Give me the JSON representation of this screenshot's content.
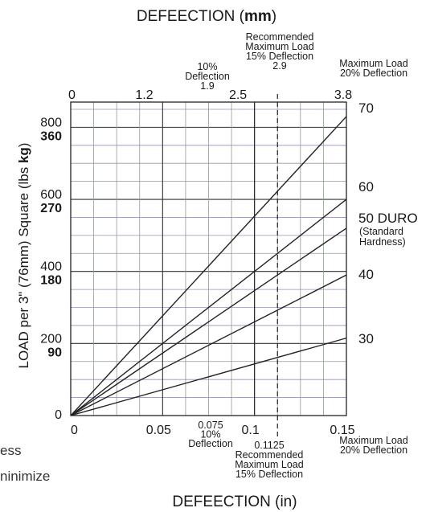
{
  "chart_data": {
    "type": "line",
    "title_top": {
      "main": "DEFEECTION (",
      "bold": "mm",
      "end": ")"
    },
    "xlabel": "DEFEECTION (in)",
    "ylabel": {
      "main": "LOAD per 3\" (76mm) Square (lbs ",
      "bold": "kg",
      "end": ")"
    },
    "xlim": [
      0,
      0.15
    ],
    "ylim": [
      0,
      800
    ],
    "x_ticks_bottom": [
      {
        "value": 0,
        "label": "0"
      },
      {
        "value": 0.05,
        "label": "0.05"
      },
      {
        "value": 0.1,
        "label": "0.1"
      },
      {
        "value": 0.15,
        "label": "0.15"
      }
    ],
    "x_ticks_top": [
      {
        "value": 0,
        "label": "0"
      },
      {
        "value": 0.047,
        "label": "1.2"
      },
      {
        "value": 0.098,
        "label": "2.5"
      },
      {
        "value": 0.15,
        "label": "3.8"
      }
    ],
    "y_ticks": [
      {
        "value": 0,
        "lbs": "0",
        "kg": ""
      },
      {
        "value": 200,
        "lbs": "200",
        "kg": "90"
      },
      {
        "value": 400,
        "lbs": "400",
        "kg": "180"
      },
      {
        "value": 600,
        "lbs": "600",
        "kg": "270"
      },
      {
        "value": 800,
        "lbs": "800",
        "kg": "360"
      }
    ],
    "grid": true,
    "series": [
      {
        "name": "70",
        "x": [
          0,
          0.15
        ],
        "y": [
          0,
          830
        ]
      },
      {
        "name": "60",
        "x": [
          0,
          0.15
        ],
        "y": [
          0,
          600
        ]
      },
      {
        "name": "50 DURO",
        "subtitle": [
          "(Standard",
          "Hardness)"
        ],
        "x": [
          0,
          0.15
        ],
        "y": [
          0,
          520
        ]
      },
      {
        "name": "40",
        "x": [
          0,
          0.15
        ],
        "y": [
          0,
          390
        ]
      },
      {
        "name": "30",
        "x": [
          0,
          0.15
        ],
        "y": [
          0,
          215
        ]
      }
    ],
    "reference_lines": [
      {
        "x": 0.1,
        "style": "solid"
      },
      {
        "x": 0.1125,
        "style": "dashed"
      }
    ],
    "annotations": {
      "top_10pct": [
        "10%",
        "Deflection",
        "1.9"
      ],
      "top_15pct": [
        "Recommended",
        "Maximum Load",
        "15% Deflection",
        "2.9"
      ],
      "top_20pct": [
        "Maximum Load",
        "20% Deflection"
      ],
      "bottom_10pct": [
        "0.075",
        "10%",
        "Deflection"
      ],
      "bottom_15pct": [
        "0.1125",
        "Recommended",
        "Maximum Load",
        "15% Deflection"
      ],
      "bottom_20pct": [
        "Maximum Load",
        "20% Deflection"
      ]
    }
  },
  "page_fragments": {
    "left1": "ess",
    "left2": "ninimize"
  },
  "colors": {
    "line": "#222222",
    "grid_h": "#9c8fb5",
    "grid_v": "#8e9e8e",
    "text": "#1a1a1a"
  }
}
